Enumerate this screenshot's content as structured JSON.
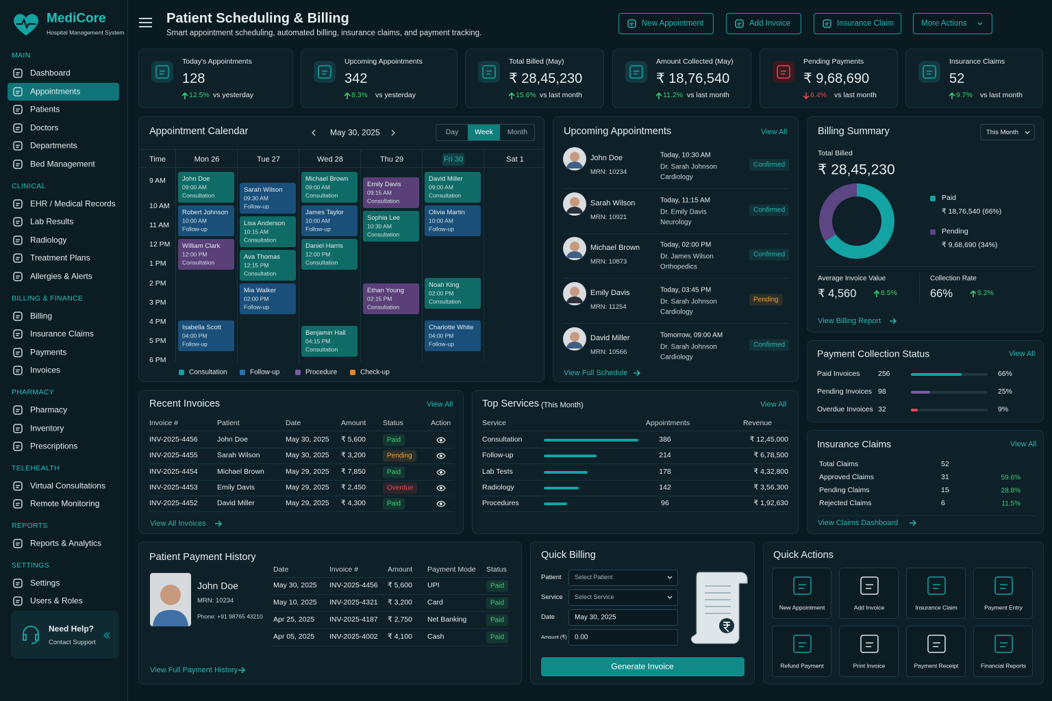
{
  "sidebar": {
    "brand": "MediCore",
    "tagline": "Hospital Management System",
    "sections": [
      {
        "title": "MAIN",
        "items": [
          "Dashboard",
          "Appointments",
          "Patients",
          "Doctors",
          "Departments",
          "Bed Management"
        ]
      },
      {
        "title": "CLINICAL",
        "items": [
          "EHR / Medical Records",
          "Lab Results",
          "Radiology",
          "Treatment Plans",
          "Allergies & Alerts"
        ]
      },
      {
        "title": "BILLING & FINANCE",
        "items": [
          "Billing",
          "Insurance Claims",
          "Payments",
          "Invoices"
        ]
      },
      {
        "title": "PHARMACY",
        "items": [
          "Pharmacy",
          "Inventory",
          "Prescriptions"
        ]
      },
      {
        "title": "TELEHEALTH",
        "items": [
          "Virtual Consultations",
          "Remote Monitoring"
        ]
      },
      {
        "title": "REPORTS",
        "items": [
          "Reports & Analytics"
        ]
      },
      {
        "title": "SETTINGS",
        "items": [
          "Settings",
          "Users & Roles"
        ]
      }
    ],
    "help": {
      "title": "Need Help?",
      "subtitle": "Contact Support"
    }
  },
  "header": {
    "title": "Patient Scheduling & Billing",
    "subtitle": "Smart appointment scheduling, automated billing, insurance claims, and payment tracking.",
    "buttons": [
      "New Appointment",
      "Add Invoice",
      "Insurance Claim",
      "More Actions"
    ]
  },
  "stats": [
    {
      "label": "Today's Appointments",
      "value": "128",
      "change": "12.5%",
      "trend": "up",
      "comparison": "vs yesterday"
    },
    {
      "label": "Upcoming Appointments",
      "value": "342",
      "change": "8.3%",
      "trend": "up",
      "comparison": "vs yesterday"
    },
    {
      "label": "Total Billed (May)",
      "value": "₹ 28,45,230",
      "change": "15.6%",
      "trend": "up",
      "comparison": "vs last month"
    },
    {
      "label": "Amount Collected (May)",
      "value": "₹ 18,76,540",
      "change": "11.2%",
      "trend": "up",
      "comparison": "vs last month"
    },
    {
      "label": "Pending Payments",
      "value": "₹ 9,68,690",
      "change": "6.4%",
      "trend": "down",
      "comparison": "vs last month"
    },
    {
      "label": "Insurance Claims",
      "value": "52",
      "change": "9.7%",
      "trend": "up",
      "comparison": "vs last month"
    }
  ],
  "calendar": {
    "title": "Appointment Calendar",
    "date": "May 30, 2025",
    "views": [
      "Day",
      "Week",
      "Month"
    ],
    "time_header": "Time",
    "times": [
      "9 AM",
      "10 AM",
      "11 AM",
      "12 PM",
      "1 PM",
      "2 PM",
      "3 PM",
      "4 PM",
      "5 PM",
      "6 PM"
    ],
    "days": [
      {
        "label": "Mon 26",
        "events": [
          {
            "name": "John Doe",
            "time": "09:00 AM",
            "type": "Consultation",
            "color": "#0f6b66"
          },
          {
            "name": "Robert Johnson",
            "time": "10:00 AM",
            "type": "Follow-up",
            "color": "#1a4f7a"
          },
          {
            "name": "William Clark",
            "time": "12:00 PM",
            "type": "Consultation",
            "color": "#5a3f78"
          },
          {
            "name": "Isabella Scott",
            "time": "04:00 PM",
            "type": "Follow-up",
            "color": "#1a4f7a"
          }
        ]
      },
      {
        "label": "Tue 27",
        "events": [
          {
            "name": "Sarah Wilson",
            "time": "09:30 AM",
            "type": "Follow-up",
            "color": "#1a4f7a"
          },
          {
            "name": "Lisa Anderson",
            "time": "10:15 AM",
            "type": "Consultation",
            "color": "#0f6b66"
          },
          {
            "name": "Ava Thomas",
            "time": "12:15 PM",
            "type": "Consultation",
            "color": "#0f6b66"
          },
          {
            "name": "Mia Walker",
            "time": "02:00 PM",
            "type": "Follow-up",
            "color": "#1a4f7a"
          }
        ]
      },
      {
        "label": "Wed 28",
        "events": [
          {
            "name": "Michael Brown",
            "time": "09:00 AM",
            "type": "Consultation",
            "color": "#0f6b66"
          },
          {
            "name": "James Taylor",
            "time": "10:00 AM",
            "type": "Follow-up",
            "color": "#1a4f7a"
          },
          {
            "name": "Daniel Harris",
            "time": "12:00 PM",
            "type": "Consultation",
            "color": "#0f6b66"
          },
          {
            "name": "Benjamin Hall",
            "time": "04:15 PM",
            "type": "Consultation",
            "color": "#0f6b66"
          }
        ]
      },
      {
        "label": "Thu 29",
        "events": [
          {
            "name": "Emily Davis",
            "time": "09:15 AM",
            "type": "Consultation",
            "color": "#5a3f78"
          },
          {
            "name": "Sophia Lee",
            "time": "10:30 AM",
            "type": "Consultation",
            "color": "#0f6b66"
          },
          {
            "name": "Ethan Young",
            "time": "02:15 PM",
            "type": "Consultation",
            "color": "#5a3f78"
          }
        ]
      },
      {
        "label": "Fri 30",
        "events": [
          {
            "name": "David Miller",
            "time": "09:00 AM",
            "type": "Consultation",
            "color": "#0f6b66"
          },
          {
            "name": "Olivia Martin",
            "time": "10:00 AM",
            "type": "Follow-up",
            "color": "#1a4f7a"
          },
          {
            "name": "Noah King",
            "time": "02:00 PM",
            "type": "Consultation",
            "color": "#0f6b66"
          },
          {
            "name": "Charlotte White",
            "time": "04:00 PM",
            "type": "Follow-up",
            "color": "#1a4f7a"
          }
        ]
      },
      {
        "label": "Sat 1",
        "events": []
      }
    ],
    "legend": [
      {
        "name": "Consultation",
        "color": "#14a3a3"
      },
      {
        "name": "Follow-up",
        "color": "#2a6fb0"
      },
      {
        "name": "Procedure",
        "color": "#7a5aa8"
      },
      {
        "name": "Check-up",
        "color": "#e8842c"
      }
    ]
  },
  "upcoming": {
    "title": "Upcoming Appointments",
    "link": "View All",
    "footer": "View Full Schedule",
    "items": [
      {
        "name": "John Doe",
        "mrn": "MRN: 10234",
        "when": "Today, 10:30 AM",
        "doctor": "Dr. Sarah Johnson",
        "department": "Cardiology",
        "status": "Confirmed"
      },
      {
        "name": "Sarah Wilson",
        "mrn": "MRN: 10921",
        "when": "Today, 11:15 AM",
        "doctor": "Dr. Emily Davis",
        "department": "Neurology",
        "status": "Confirmed"
      },
      {
        "name": "Michael Brown",
        "mrn": "MRN: 10873",
        "when": "Today, 02:00 PM",
        "doctor": "Dr. James Wilson",
        "department": "Orthopedics",
        "status": "Confirmed"
      },
      {
        "name": "Emily Davis",
        "mrn": "MRN: 11254",
        "when": "Today, 03:45 PM",
        "doctor": "Dr. Sarah Johnson",
        "department": "Cardiology",
        "status": "Pending"
      },
      {
        "name": "David Miller",
        "mrn": "MRN: 10566",
        "when": "Tomorrow, 09:00 AM",
        "doctor": "Dr. Sarah Johnson",
        "department": "Cardiology",
        "status": "Confirmed"
      }
    ]
  },
  "status_colors": {
    "Confirmed": "#2bb5b0",
    "Pending": "#f0a030",
    "Paid": "#3ccf6e",
    "Overdue": "#e5484d"
  },
  "billing_summary": {
    "title": "Billing Summary",
    "period": "This Month",
    "total_label": "Total Billed",
    "total": "₹ 28,45,230",
    "segments": [
      {
        "name": "Paid",
        "value": 66,
        "label": "₹ 18,76,540 (66%)",
        "color": "#14a3a3"
      },
      {
        "name": "Pending",
        "value": 34,
        "label": "₹ 9,68,690 (34%)",
        "color": "#5d4684"
      }
    ],
    "metrics": [
      {
        "label": "Average Invoice Value",
        "value": "₹ 4,560",
        "change": "8.5%"
      },
      {
        "label": "Collection Rate",
        "value": "66%",
        "change": "5.2%"
      }
    ],
    "link": "View Billing Report"
  },
  "payment_status": {
    "title": "Payment Collection Status",
    "link": "View All",
    "rows": [
      {
        "label": "Paid Invoices",
        "count": "256",
        "percent": 66,
        "percent_label": "66%",
        "color": "#14a3a3"
      },
      {
        "label": "Pending Invoices",
        "count": "98",
        "percent": 25,
        "percent_label": "25%",
        "color": "#7a5aa8"
      },
      {
        "label": "Overdue Invoices",
        "count": "32",
        "percent": 9,
        "percent_label": "9%",
        "color": "#e5484d"
      }
    ]
  },
  "recent_invoices": {
    "title": "Recent Invoices",
    "link": "View All",
    "footer": "View All Invoices",
    "columns": [
      "Invoice #",
      "Patient",
      "Date",
      "Amount",
      "Status",
      "Action"
    ],
    "rows": [
      [
        "INV-2025-4456",
        "John Doe",
        "May 30, 2025",
        "₹ 5,600",
        "Paid"
      ],
      [
        "INV-2025-4455",
        "Sarah Wilson",
        "May 30, 2025",
        "₹ 3,200",
        "Pending"
      ],
      [
        "INV-2025-4454",
        "Michael Brown",
        "May 29, 2025",
        "₹ 7,850",
        "Paid"
      ],
      [
        "INV-2025-4453",
        "Emily Davis",
        "May 29, 2025",
        "₹ 2,450",
        "Overdue"
      ],
      [
        "INV-2025-4452",
        "David Miller",
        "May 29, 2025",
        "₹ 4,300",
        "Paid"
      ]
    ]
  },
  "top_services": {
    "title": "Top Services",
    "subtitle": "(This Month)",
    "link": "View All",
    "columns": [
      "Service",
      "Appointments",
      "Revenue"
    ],
    "rows": [
      {
        "name": "Consultation",
        "appointments": 386,
        "revenue": "₹ 12,45,000"
      },
      {
        "name": "Follow-up",
        "appointments": 214,
        "revenue": "₹ 6,78,500"
      },
      {
        "name": "Lab Tests",
        "appointments": 178,
        "revenue": "₹ 4,32,800"
      },
      {
        "name": "Radiology",
        "appointments": 142,
        "revenue": "₹ 3,56,300"
      },
      {
        "name": "Procedures",
        "appointments": 96,
        "revenue": "₹ 1,92,630"
      }
    ]
  },
  "insurance_claims": {
    "title": "Insurance Claims",
    "link": "View All",
    "footer": "View Claims Dashboard",
    "rows": [
      [
        "Total Claims",
        "52"
      ],
      [
        "Approved Claims",
        "31",
        "59.6%"
      ],
      [
        "Pending Claims",
        "15",
        "28.8%"
      ],
      [
        "Rejected Claims",
        "6",
        "11.5%"
      ]
    ]
  },
  "payment_history": {
    "title": "Patient Payment History",
    "patient": {
      "name": "John Doe",
      "mrn": "MRN: 10234",
      "phone": "Phone: +91 98765 43210"
    },
    "columns": [
      "Date",
      "Invoice #",
      "Amount",
      "Payment Mode",
      "Status"
    ],
    "rows": [
      [
        "May 30, 2025",
        "INV-2025-4456",
        "₹ 5,600",
        "UPI",
        "Paid"
      ],
      [
        "May 10, 2025",
        "INV-2025-4321",
        "₹ 3,200",
        "Card",
        "Paid"
      ],
      [
        "Apr 25, 2025",
        "INV-2025-4187",
        "₹ 2,750",
        "Net Banking",
        "Paid"
      ],
      [
        "Apr 05, 2025",
        "INV-2025-4002",
        "₹ 4,100",
        "Cash",
        "Paid"
      ]
    ],
    "footer": "View Full Payment History"
  },
  "quick_billing": {
    "title": "Quick Billing",
    "fields": [
      {
        "label": "Patient",
        "value": "Select Patient",
        "select": true
      },
      {
        "label": "Service",
        "value": "Select Service",
        "select": true
      },
      {
        "label": "Date",
        "value": "May 30, 2025"
      },
      {
        "label": "Amount (₹)",
        "value": "0.00"
      }
    ],
    "button": "Generate Invoice"
  },
  "quick_actions": {
    "title": "Quick Actions",
    "items": [
      "New Appointment",
      "Add Invoice",
      "Insurance Claim",
      "Payment Entry",
      "Refund Payment",
      "Print Invoice",
      "Payment Receipt",
      "Financial Reports"
    ]
  }
}
